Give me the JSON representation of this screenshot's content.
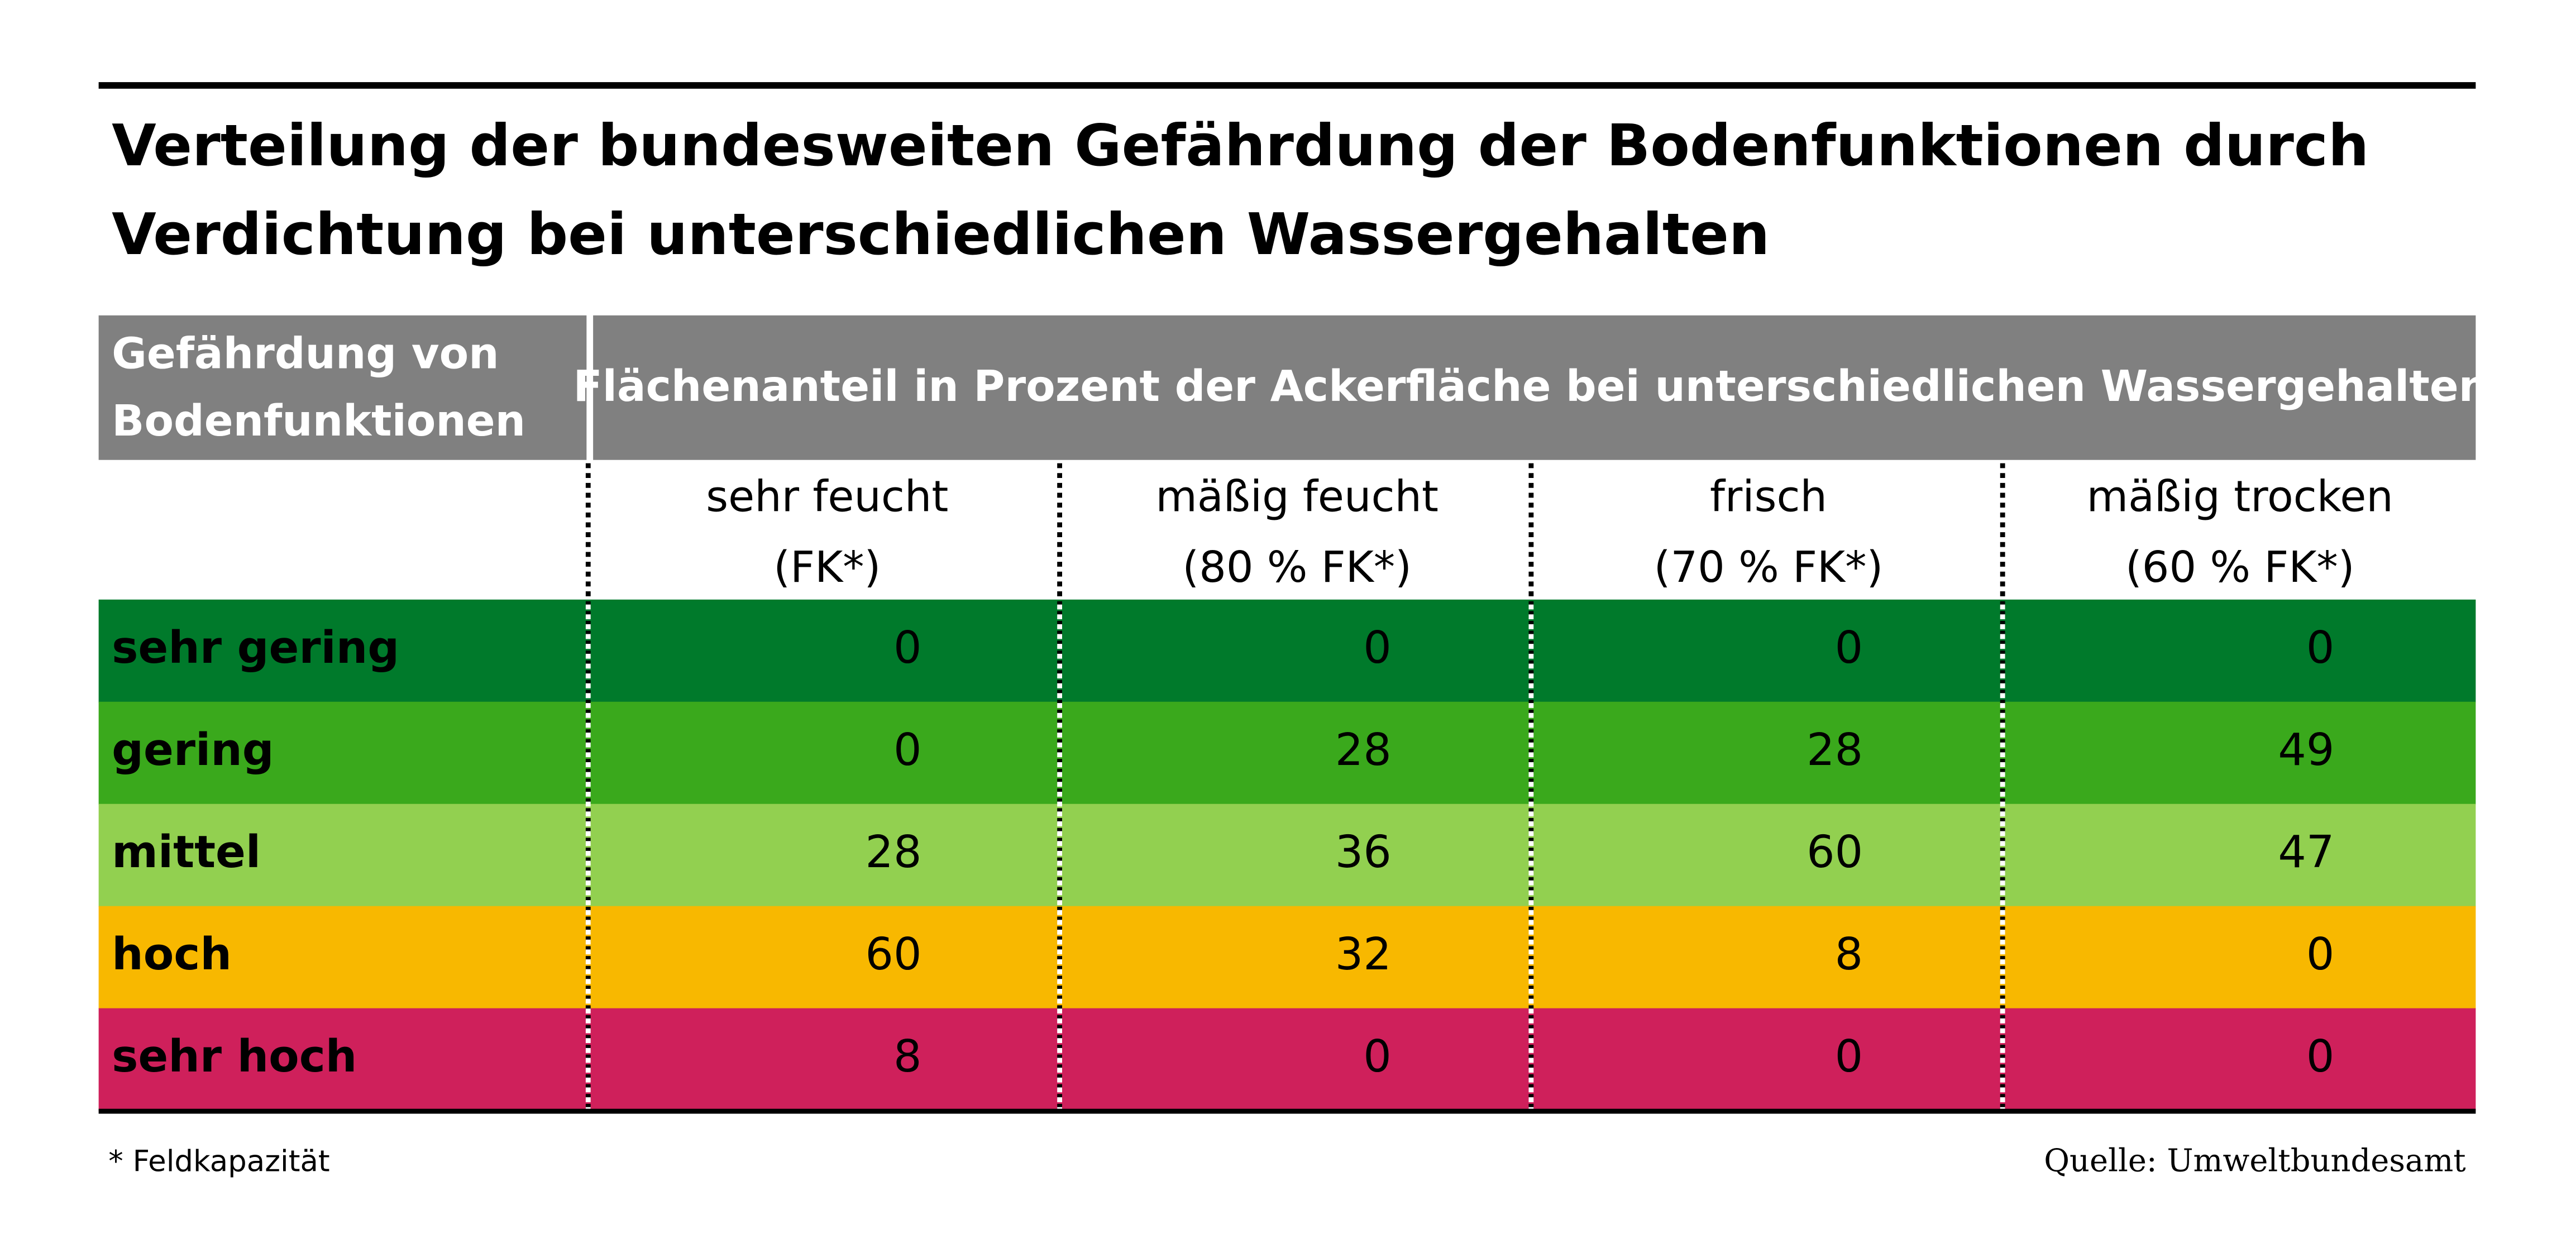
{
  "header": {
    "title_lines": [
      "Verteilung der bundesweiten Gefährdung der Bodenfunktionen durch",
      "Verdichtung bei unterschiedlichen Wassergehalten"
    ]
  },
  "table": {
    "row_header": [
      "Gefährdung von",
      "Bodenfunktionen"
    ],
    "group_header": "Flächenanteil in Prozent der Ackerfläche bei unterschiedlichen Wassergehalten",
    "columns": [
      [
        "sehr feucht",
        "(FK*)"
      ],
      [
        "mäßig feucht",
        "(80 % FK*)"
      ],
      [
        "frisch",
        "(70 % FK*)"
      ],
      [
        "mäßig trocken",
        "(60 % FK*)"
      ]
    ],
    "rows": [
      {
        "label": "sehr gering",
        "color": "#007a2b",
        "values": [
          0,
          0,
          0,
          0
        ]
      },
      {
        "label": "gering",
        "color": "#3aa91c",
        "values": [
          0,
          28,
          28,
          49
        ]
      },
      {
        "label": "mittel",
        "color": "#92d050",
        "values": [
          28,
          36,
          60,
          47
        ]
      },
      {
        "label": "hoch",
        "color": "#f8b800",
        "values": [
          60,
          32,
          8,
          0
        ]
      },
      {
        "label": "sehr hoch",
        "color": "#cf205b",
        "values": [
          8,
          0,
          0,
          0
        ]
      }
    ]
  },
  "footnote": "* Feldkapazität",
  "source": "Quelle: Umweltbundesamt"
}
